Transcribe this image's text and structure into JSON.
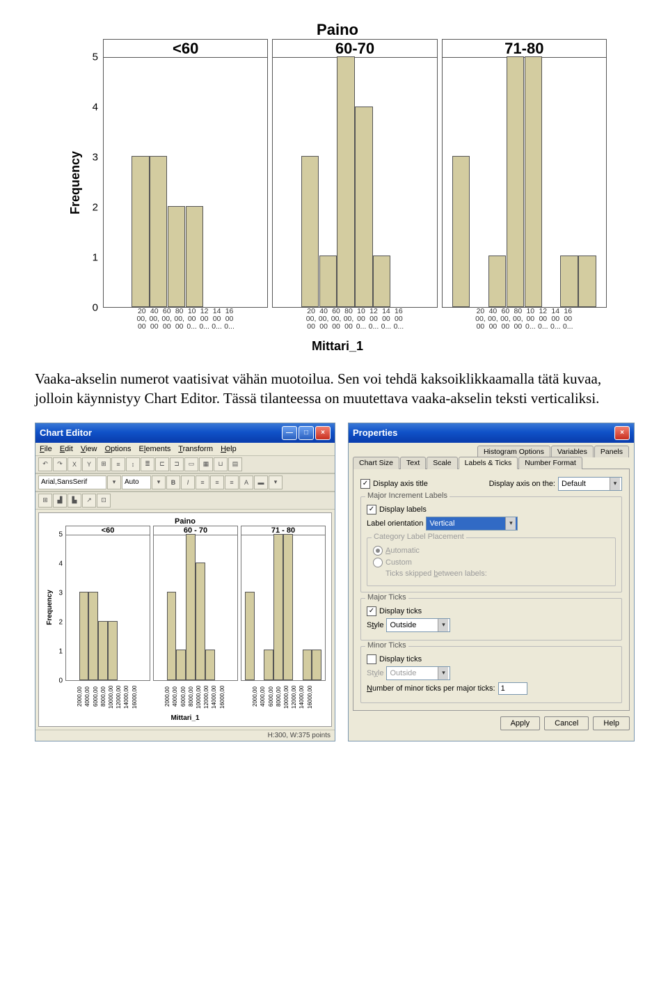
{
  "chart": {
    "title": "Paino",
    "ylabel": "Frequency",
    "xlabel": "Mittari_1",
    "yticks": [
      0,
      1,
      2,
      3,
      4,
      5
    ],
    "ymax": 5,
    "panels": [
      {
        "label": "<60",
        "bars": [
          0,
          3,
          3,
          2,
          2,
          0,
          0,
          0
        ]
      },
      {
        "label": "60-70",
        "bars": [
          0,
          3,
          1,
          5,
          4,
          1,
          0,
          0
        ]
      },
      {
        "label": "71-80",
        "bars": [
          3,
          0,
          1,
          5,
          5,
          0,
          1,
          1
        ]
      }
    ],
    "xtick_labels": [
      "20\n00,\n00",
      "40\n00,\n00",
      "60\n00,\n00",
      "80\n00,\n00",
      "10\n00\n0...",
      "12\n00\n0...",
      "14\n00\n0...",
      "16\n00\n0..."
    ],
    "bar_color": "#d3cca0",
    "border_color": "#555555"
  },
  "paragraph": "Vaaka-akselin numerot vaatisivat vähän muotoilua. Sen voi tehdä kaksoiklikkaamalla tätä kuvaa, jolloin käynnistyy Chart Editor. Tässä tilanteessa on muutettava vaaka-akselin teksti verticaliksi.",
  "chart_editor": {
    "title": "Chart Editor",
    "menu": [
      "File",
      "Edit",
      "View",
      "Options",
      "Elements",
      "Transform",
      "Help"
    ],
    "font": "Arial,SansSerif",
    "autosize": "Auto",
    "mini_title": "Paino",
    "ylabel": "Frequency",
    "xlabel": "Mittari_1",
    "panels": [
      "<60",
      "60 - 70",
      "71 - 80"
    ],
    "yticks": [
      0,
      1,
      2,
      3,
      4,
      5
    ],
    "xticks": [
      "2000,00",
      "4000,00",
      "6000,00",
      "8000,00",
      "10000,00",
      "12000,00",
      "14000,00",
      "16000,00"
    ],
    "bars": [
      [
        0,
        3,
        3,
        2,
        2,
        0,
        0,
        0
      ],
      [
        0,
        3,
        1,
        5,
        4,
        1,
        0,
        0
      ],
      [
        3,
        0,
        1,
        5,
        5,
        0,
        1,
        1
      ]
    ],
    "status": "H:300, W:375 points"
  },
  "properties": {
    "title": "Properties",
    "tabs_row2": [
      "Histogram Options",
      "Variables",
      "Panels"
    ],
    "tabs_row1": [
      "Chart Size",
      "Text",
      "Scale",
      "Labels & Ticks",
      "Number Format"
    ],
    "active_tab": "Labels & Ticks",
    "display_axis_title": "Display axis title",
    "display_axis_on": "Display axis on the:",
    "display_axis_on_value": "Default",
    "grp_major_inc": "Major Increment Labels",
    "display_labels": "Display labels",
    "label_orientation": "Label orientation",
    "label_orientation_value": "Vertical",
    "grp_cat": "Category Label Placement",
    "automatic": "Automatic",
    "custom": "Custom",
    "ticks_skipped": "Ticks skipped between labels:",
    "grp_major_ticks": "Major Ticks",
    "display_ticks": "Display ticks",
    "style": "Style",
    "style_value": "Outside",
    "grp_minor_ticks": "Minor Ticks",
    "minor_num": "Number of minor ticks per major ticks:",
    "minor_num_value": "1",
    "apply": "Apply",
    "cancel": "Cancel",
    "help": "Help"
  }
}
